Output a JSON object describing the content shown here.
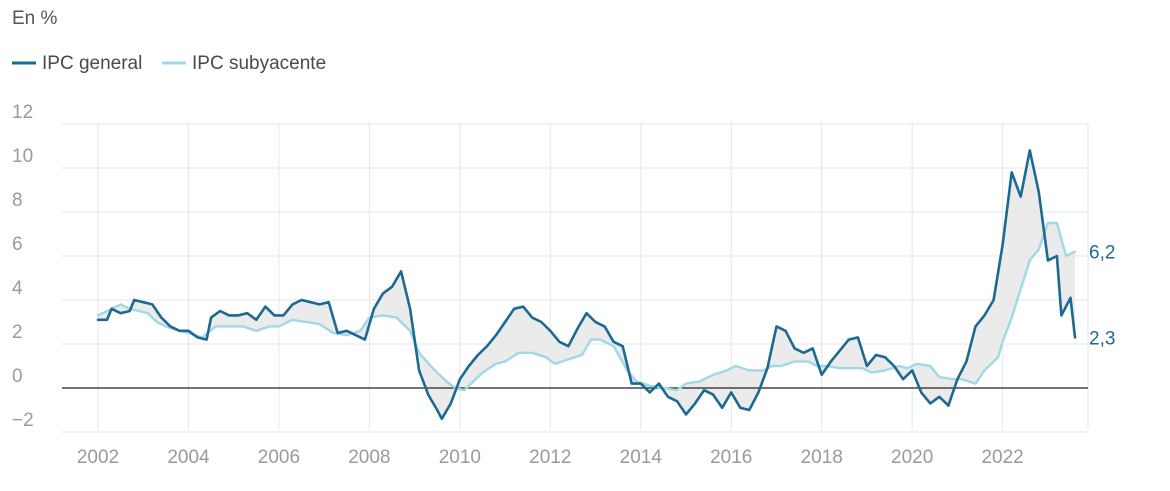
{
  "chart_data": {
    "type": "line",
    "unit_label": "En %",
    "title": "",
    "xlabel": "",
    "ylabel": "",
    "xlim": [
      2002,
      2023.6
    ],
    "ylim": [
      -2,
      12
    ],
    "x_ticks": [
      "2002",
      "2004",
      "2006",
      "2008",
      "2010",
      "2012",
      "2014",
      "2016",
      "2018",
      "2020",
      "2022"
    ],
    "y_ticks": [
      "12",
      "10",
      "8",
      "6",
      "4",
      "2",
      "0",
      "−2"
    ],
    "grid": true,
    "legend": "top-left",
    "series": [
      {
        "name": "IPC general",
        "color": "#1c6a92",
        "end_label": "2,3",
        "points": [
          [
            2002,
            3.1
          ],
          [
            2002.2,
            3.1
          ],
          [
            2002.3,
            3.6
          ],
          [
            2002.5,
            3.4
          ],
          [
            2002.7,
            3.5
          ],
          [
            2002.8,
            4.0
          ],
          [
            2003.0,
            3.9
          ],
          [
            2003.2,
            3.8
          ],
          [
            2003.4,
            3.2
          ],
          [
            2003.6,
            2.8
          ],
          [
            2003.8,
            2.6
          ],
          [
            2004.0,
            2.6
          ],
          [
            2004.2,
            2.3
          ],
          [
            2004.4,
            2.2
          ],
          [
            2004.5,
            3.2
          ],
          [
            2004.7,
            3.5
          ],
          [
            2004.9,
            3.3
          ],
          [
            2005.1,
            3.3
          ],
          [
            2005.3,
            3.4
          ],
          [
            2005.5,
            3.1
          ],
          [
            2005.7,
            3.7
          ],
          [
            2005.9,
            3.3
          ],
          [
            2006.1,
            3.3
          ],
          [
            2006.3,
            3.8
          ],
          [
            2006.5,
            4.0
          ],
          [
            2006.7,
            3.9
          ],
          [
            2006.9,
            3.8
          ],
          [
            2007.1,
            3.9
          ],
          [
            2007.3,
            2.5
          ],
          [
            2007.5,
            2.6
          ],
          [
            2007.7,
            2.4
          ],
          [
            2007.9,
            2.2
          ],
          [
            2008.1,
            3.6
          ],
          [
            2008.3,
            4.3
          ],
          [
            2008.5,
            4.6
          ],
          [
            2008.7,
            5.3
          ],
          [
            2008.9,
            3.6
          ],
          [
            2009.1,
            0.8
          ],
          [
            2009.3,
            -0.3
          ],
          [
            2009.5,
            -1.0
          ],
          [
            2009.6,
            -1.4
          ],
          [
            2009.8,
            -0.7
          ],
          [
            2010.0,
            0.4
          ],
          [
            2010.2,
            1.0
          ],
          [
            2010.4,
            1.5
          ],
          [
            2010.6,
            1.9
          ],
          [
            2010.8,
            2.4
          ],
          [
            2011.0,
            3.0
          ],
          [
            2011.2,
            3.6
          ],
          [
            2011.4,
            3.7
          ],
          [
            2011.6,
            3.2
          ],
          [
            2011.8,
            3.0
          ],
          [
            2012.0,
            2.6
          ],
          [
            2012.2,
            2.1
          ],
          [
            2012.4,
            1.9
          ],
          [
            2012.6,
            2.7
          ],
          [
            2012.8,
            3.4
          ],
          [
            2013.0,
            3.0
          ],
          [
            2013.2,
            2.8
          ],
          [
            2013.4,
            2.1
          ],
          [
            2013.6,
            1.9
          ],
          [
            2013.8,
            0.2
          ],
          [
            2014.0,
            0.2
          ],
          [
            2014.2,
            -0.2
          ],
          [
            2014.4,
            0.2
          ],
          [
            2014.6,
            -0.4
          ],
          [
            2014.8,
            -0.6
          ],
          [
            2015.0,
            -1.2
          ],
          [
            2015.2,
            -0.7
          ],
          [
            2015.4,
            -0.1
          ],
          [
            2015.6,
            -0.3
          ],
          [
            2015.8,
            -0.9
          ],
          [
            2016.0,
            -0.2
          ],
          [
            2016.2,
            -0.9
          ],
          [
            2016.4,
            -1.0
          ],
          [
            2016.6,
            -0.2
          ],
          [
            2016.8,
            0.9
          ],
          [
            2017.0,
            2.8
          ],
          [
            2017.2,
            2.6
          ],
          [
            2017.4,
            1.8
          ],
          [
            2017.6,
            1.6
          ],
          [
            2017.8,
            1.8
          ],
          [
            2018.0,
            0.6
          ],
          [
            2018.2,
            1.2
          ],
          [
            2018.4,
            1.7
          ],
          [
            2018.6,
            2.2
          ],
          [
            2018.8,
            2.3
          ],
          [
            2019.0,
            1.0
          ],
          [
            2019.2,
            1.5
          ],
          [
            2019.4,
            1.4
          ],
          [
            2019.6,
            1.0
          ],
          [
            2019.8,
            0.4
          ],
          [
            2020.0,
            0.8
          ],
          [
            2020.2,
            -0.2
          ],
          [
            2020.4,
            -0.7
          ],
          [
            2020.6,
            -0.4
          ],
          [
            2020.8,
            -0.8
          ],
          [
            2021.0,
            0.4
          ],
          [
            2021.2,
            1.2
          ],
          [
            2021.4,
            2.8
          ],
          [
            2021.6,
            3.3
          ],
          [
            2021.8,
            4.0
          ],
          [
            2022.0,
            6.5
          ],
          [
            2022.2,
            9.8
          ],
          [
            2022.4,
            8.7
          ],
          [
            2022.6,
            10.8
          ],
          [
            2022.8,
            8.9
          ],
          [
            2023.0,
            5.8
          ],
          [
            2023.2,
            6.0
          ],
          [
            2023.3,
            3.3
          ],
          [
            2023.5,
            4.1
          ],
          [
            2023.6,
            2.3
          ]
        ]
      },
      {
        "name": "IPC subyacente",
        "color": "#9fd8e6",
        "end_label": "6,2",
        "points": [
          [
            2002,
            3.3
          ],
          [
            2002.3,
            3.6
          ],
          [
            2002.5,
            3.8
          ],
          [
            2002.7,
            3.6
          ],
          [
            2002.9,
            3.5
          ],
          [
            2003.1,
            3.4
          ],
          [
            2003.3,
            3.0
          ],
          [
            2003.5,
            2.8
          ],
          [
            2003.8,
            2.6
          ],
          [
            2004.0,
            2.5
          ],
          [
            2004.3,
            2.3
          ],
          [
            2004.6,
            2.8
          ],
          [
            2004.9,
            2.8
          ],
          [
            2005.2,
            2.8
          ],
          [
            2005.5,
            2.6
          ],
          [
            2005.8,
            2.8
          ],
          [
            2006.0,
            2.8
          ],
          [
            2006.3,
            3.1
          ],
          [
            2006.6,
            3.0
          ],
          [
            2006.9,
            2.9
          ],
          [
            2007.2,
            2.5
          ],
          [
            2007.5,
            2.4
          ],
          [
            2007.8,
            2.6
          ],
          [
            2008.0,
            3.2
          ],
          [
            2008.3,
            3.3
          ],
          [
            2008.6,
            3.2
          ],
          [
            2008.9,
            2.6
          ],
          [
            2009.1,
            1.6
          ],
          [
            2009.4,
            0.9
          ],
          [
            2009.7,
            0.3
          ],
          [
            2009.9,
            0.0
          ],
          [
            2010.1,
            -0.1
          ],
          [
            2010.3,
            0.3
          ],
          [
            2010.5,
            0.7
          ],
          [
            2010.8,
            1.1
          ],
          [
            2011.0,
            1.2
          ],
          [
            2011.3,
            1.6
          ],
          [
            2011.6,
            1.6
          ],
          [
            2011.9,
            1.4
          ],
          [
            2012.1,
            1.1
          ],
          [
            2012.4,
            1.3
          ],
          [
            2012.7,
            1.5
          ],
          [
            2012.9,
            2.2
          ],
          [
            2013.1,
            2.2
          ],
          [
            2013.4,
            1.9
          ],
          [
            2013.7,
            0.8
          ],
          [
            2013.9,
            0.3
          ],
          [
            2014.2,
            0.1
          ],
          [
            2014.5,
            0.0
          ],
          [
            2014.8,
            -0.1
          ],
          [
            2015.0,
            0.2
          ],
          [
            2015.3,
            0.3
          ],
          [
            2015.6,
            0.6
          ],
          [
            2015.9,
            0.8
          ],
          [
            2016.1,
            1.0
          ],
          [
            2016.4,
            0.8
          ],
          [
            2016.7,
            0.8
          ],
          [
            2016.9,
            1.0
          ],
          [
            2017.1,
            1.0
          ],
          [
            2017.4,
            1.2
          ],
          [
            2017.7,
            1.2
          ],
          [
            2017.9,
            1.0
          ],
          [
            2018.1,
            1.0
          ],
          [
            2018.4,
            0.9
          ],
          [
            2018.7,
            0.9
          ],
          [
            2018.9,
            0.9
          ],
          [
            2019.1,
            0.7
          ],
          [
            2019.4,
            0.8
          ],
          [
            2019.7,
            1.0
          ],
          [
            2019.9,
            0.9
          ],
          [
            2020.1,
            1.1
          ],
          [
            2020.4,
            1.0
          ],
          [
            2020.6,
            0.5
          ],
          [
            2020.9,
            0.4
          ],
          [
            2021.1,
            0.4
          ],
          [
            2021.4,
            0.2
          ],
          [
            2021.6,
            0.8
          ],
          [
            2021.9,
            1.4
          ],
          [
            2022.0,
            2.1
          ],
          [
            2022.2,
            3.2
          ],
          [
            2022.4,
            4.5
          ],
          [
            2022.6,
            5.8
          ],
          [
            2022.8,
            6.3
          ],
          [
            2023.0,
            7.5
          ],
          [
            2023.2,
            7.5
          ],
          [
            2023.4,
            6.0
          ],
          [
            2023.6,
            6.2
          ]
        ]
      }
    ]
  }
}
